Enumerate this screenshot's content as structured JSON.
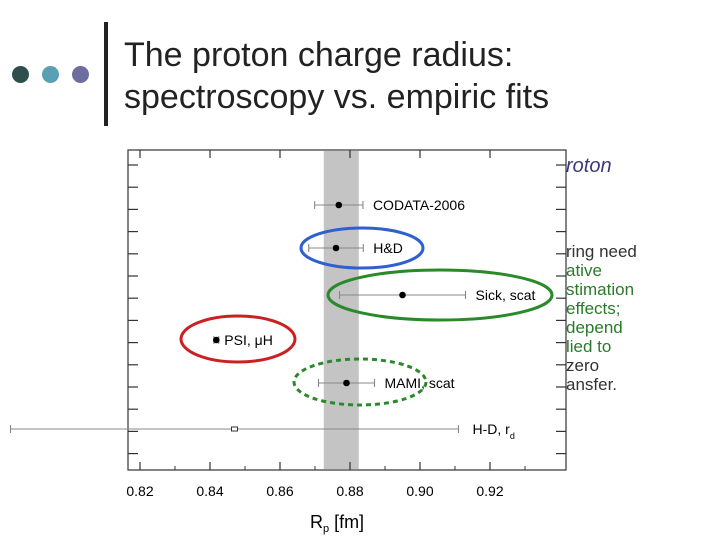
{
  "slide": {
    "title_lines": [
      "The proton charge radius:",
      "spectroscopy vs. empiric fits"
    ],
    "bg_partial_heading": "roton",
    "bg_partial_text": [
      "ring need",
      "ative",
      "stimation",
      "effects;",
      "depend",
      "lied to",
      "zero",
      "ansfer."
    ],
    "accent_dots": [
      "#2f4f4f",
      "#5aa0b4",
      "#6e6e9e"
    ]
  },
  "chart_data": {
    "type": "scatter",
    "xlabel": "R",
    "xlabel_sub": "p",
    "xlabel_unit": " [fm]",
    "xlim": [
      0.82,
      0.935
    ],
    "xticks": [
      "0.82",
      "0.84",
      "0.86",
      "0.88",
      "0.90",
      "0.92"
    ],
    "band": [
      0.8725,
      0.8825
    ],
    "points": [
      {
        "name": "CODATA-2006",
        "x": 0.8768,
        "err": 0.0069,
        "circle": null
      },
      {
        "name": "H&D",
        "x": 0.876,
        "err": 0.0078,
        "circle": "#3060d0"
      },
      {
        "name": "Sick, scat",
        "x": 0.895,
        "err": 0.018,
        "circle": "#2a8a2a"
      },
      {
        "name": "PSI, μH",
        "x": 0.8418,
        "err": 0.0007,
        "circle": "#cc2020"
      },
      {
        "name": "MAMI, scat",
        "x": 0.879,
        "err": 0.008,
        "circle": "#2a8a2a"
      },
      {
        "name": "H-D, r",
        "name_sub": "d",
        "x": 0.847,
        "err": 0.064,
        "circle": null,
        "open": true
      }
    ]
  }
}
